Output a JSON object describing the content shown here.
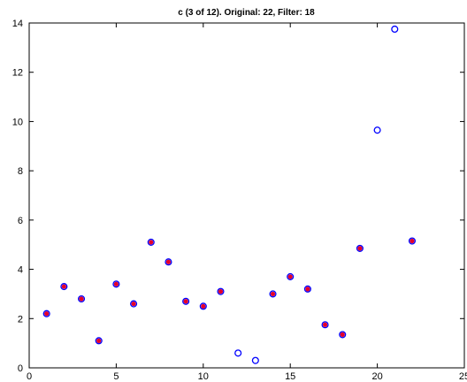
{
  "chart_data": {
    "type": "scatter",
    "title": "c (3 of 12). Original: 22, Filter: 18",
    "xlabel": "",
    "ylabel": "",
    "xlim": [
      0,
      25
    ],
    "ylim": [
      0,
      14
    ],
    "xticks": [
      0,
      5,
      10,
      15,
      20,
      25
    ],
    "yticks": [
      0,
      2,
      4,
      6,
      8,
      10,
      12,
      14
    ],
    "grid": false,
    "series": [
      {
        "marker": "circle-open",
        "color": "#0000ff",
        "x": [
          1,
          2,
          3,
          4,
          5,
          6,
          7,
          8,
          9,
          10,
          11,
          12,
          13,
          14,
          15,
          16,
          17,
          18,
          19,
          20,
          21,
          22
        ],
        "y": [
          2.2,
          3.3,
          2.8,
          1.1,
          3.4,
          2.6,
          5.1,
          4.3,
          2.7,
          2.5,
          3.1,
          0.6,
          0.3,
          3.0,
          3.7,
          3.2,
          1.75,
          1.35,
          4.85,
          9.65,
          13.75,
          5.15
        ]
      },
      {
        "marker": "filled-dot",
        "color": "#e4002b",
        "x": [
          1,
          2,
          3,
          4,
          5,
          6,
          7,
          8,
          9,
          10,
          11,
          14,
          15,
          16,
          17,
          18,
          19,
          22
        ],
        "y": [
          2.2,
          3.3,
          2.8,
          1.1,
          3.4,
          2.6,
          5.1,
          4.3,
          2.7,
          2.5,
          3.1,
          3.0,
          3.7,
          3.2,
          1.75,
          1.35,
          4.85,
          5.15
        ]
      }
    ]
  }
}
